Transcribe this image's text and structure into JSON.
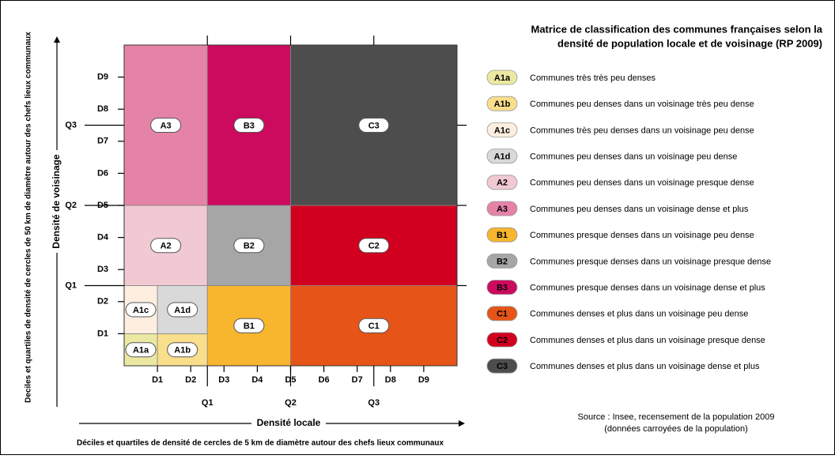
{
  "title": [
    "Matrice de classification des communes françaises selon la",
    "densité de population locale et de voisinage (RP 2009)"
  ],
  "x_axis": {
    "title": "Densité locale",
    "subtitle": "Déciles et quartiles de densité de cercles de 5 km de diamètre autour des chefs lieux communaux"
  },
  "y_axis": {
    "title": "Densité de voisinage",
    "subtitle": "Deciles et quartiles de densité de cercles de 50 km de diamètre autour des chefs lieux communaux"
  },
  "deciles": [
    "D1",
    "D2",
    "D3",
    "D4",
    "D5",
    "D6",
    "D7",
    "D8",
    "D9"
  ],
  "quartiles": [
    "Q1",
    "Q2",
    "Q3"
  ],
  "classes": [
    {
      "code": "A1a",
      "label": "Communes très très peu denses",
      "color": "#ebe9a1"
    },
    {
      "code": "A1b",
      "label": "Communes peu denses dans un voisinage très peu dense",
      "color": "#f9de8b"
    },
    {
      "code": "A1c",
      "label": "Communes très peu denses dans un voisinage peu dense",
      "color": "#fdeee0"
    },
    {
      "code": "A1d",
      "label": "Communes peu denses dans un voisinage peu dense",
      "color": "#d9d9d9"
    },
    {
      "code": "A2",
      "label": "Communes peu denses dans un voisinage presque dense",
      "color": "#f1c9d3"
    },
    {
      "code": "A3",
      "label": "Communes peu denses dans un voisinage dense et plus",
      "color": "#e583a7"
    },
    {
      "code": "B1",
      "label": "Communes presque denses dans un voisinage peu dense",
      "color": "#f8b52e"
    },
    {
      "code": "B2",
      "label": "Communes presque denses dans un voisinage presque dense",
      "color": "#a6a6a6"
    },
    {
      "code": "B3",
      "label": "Communes presque denses dans un voisinage dense et plus",
      "color": "#cc0a5e"
    },
    {
      "code": "C1",
      "label": "Communes denses et plus dans un voisinage peu dense",
      "color": "#e75418"
    },
    {
      "code": "C2",
      "label": "Communes denses et plus dans un voisinage presque dense",
      "color": "#d2001f"
    },
    {
      "code": "C3",
      "label": "Communes denses  et plus dans un voisinage dense et plus",
      "color": "#4d4d4d"
    }
  ],
  "source": [
    "Source : Insee, recensement de la population 2009",
    "(données carroyées de la population)"
  ]
}
